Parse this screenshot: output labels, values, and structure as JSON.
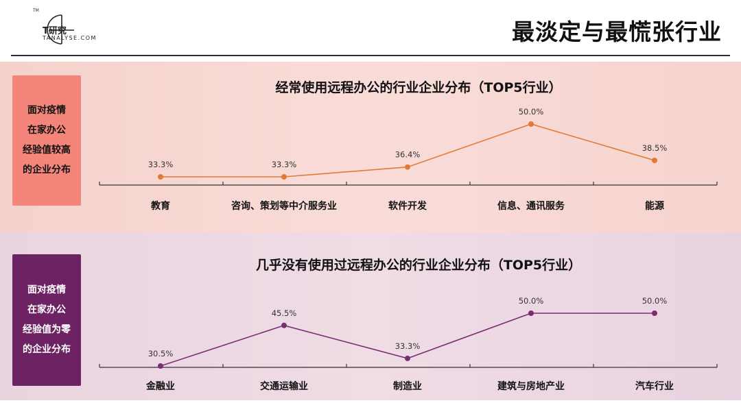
{
  "header": {
    "brand_cn": "T研究",
    "brand_en": "TANALYSE.COM",
    "tm": "TM",
    "title": "最淡定与最慌张行业"
  },
  "panels": [
    {
      "side_label": "面对疫情\n在家办公\n经验值较高\n的企业分布"
    },
    {
      "side_label": "面对疫情\n在家办公\n经验值为零\n的企业分布"
    }
  ],
  "colors": {
    "series1": "#e07a37",
    "series2": "#7b2d73"
  },
  "chart_data": [
    {
      "type": "line",
      "title": "经常使用远程办公的行业企业分布（TOP5行业）",
      "categories": [
        "教育",
        "咨询、策划等中介服务业",
        "软件开发",
        "信息、通讯服务",
        "能源"
      ],
      "values": [
        33.3,
        33.3,
        36.4,
        50.0,
        38.5
      ],
      "value_labels": [
        "33.3%",
        "33.3%",
        "36.4%",
        "50.0%",
        "38.5%"
      ],
      "unit": "%",
      "grid": false
    },
    {
      "type": "line",
      "title": "几乎没有使用过远程办公的行业企业分布（TOP5行业）",
      "categories": [
        "金融业",
        "交通运输业",
        "制造业",
        "建筑与房地产业",
        "汽车行业"
      ],
      "values": [
        30.5,
        45.5,
        33.3,
        50.0,
        50.0
      ],
      "value_labels": [
        "30.5%",
        "45.5%",
        "33.3%",
        "50.0%",
        "50.0%"
      ],
      "unit": "%",
      "grid": false
    }
  ]
}
